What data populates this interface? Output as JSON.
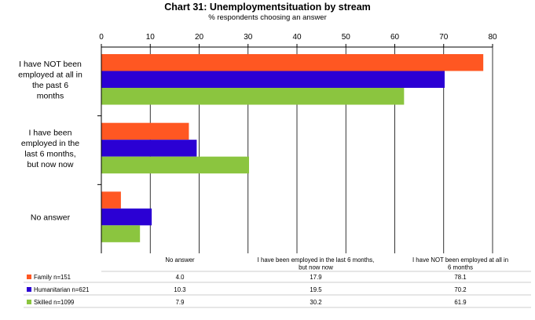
{
  "chart_data": {
    "type": "bar",
    "orientation": "horizontal",
    "title": "Chart 31: Unemploymentsituation by stream",
    "subtitle": "% respondents choosing an answer",
    "xlim": [
      0,
      80
    ],
    "x_ticks": [
      "0",
      "10",
      "20",
      "30",
      "40",
      "50",
      "60",
      "70",
      "80"
    ],
    "grid": true,
    "categories": [
      [
        "I have NOT been",
        "employed at all in",
        "the past 6",
        "months"
      ],
      [
        "I have been",
        "employed in the",
        "last 6 months,",
        "but now now"
      ],
      [
        "No answer"
      ]
    ],
    "table_columns": [
      [
        "No answer"
      ],
      [
        "I have been employed in the last 6 months,",
        "but now now"
      ],
      [
        "I have NOT been employed at all in",
        "6 months"
      ]
    ],
    "series": [
      {
        "name": "Family n=151",
        "color": "#FF5722",
        "values": [
          78.1,
          17.9,
          4.0
        ],
        "table_values": [
          "4.0",
          "17.9",
          "78.1"
        ]
      },
      {
        "name": "Humanitarian n=621",
        "color": "#2B00D4",
        "values": [
          70.2,
          19.5,
          10.3
        ],
        "table_values": [
          "10.3",
          "19.5",
          "70.2"
        ]
      },
      {
        "name": "Skilled n=1099",
        "color": "#8BC53F",
        "values": [
          61.9,
          30.2,
          7.9
        ],
        "table_values": [
          "7.9",
          "30.2",
          "61.9"
        ]
      }
    ]
  }
}
